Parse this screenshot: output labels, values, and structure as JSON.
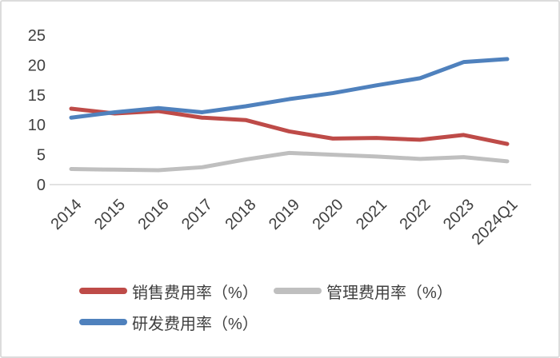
{
  "chart_data": {
    "type": "line",
    "title": "",
    "categories": [
      "2014",
      "2015",
      "2016",
      "2017",
      "2018",
      "2019",
      "2020",
      "2021",
      "2022",
      "2023",
      "2024Q1"
    ],
    "series": [
      {
        "key": "sales-expense-ratio",
        "name": "销售费用率（%）",
        "color": "#BE4B48",
        "values": [
          12.7,
          11.9,
          12.3,
          11.2,
          10.8,
          8.9,
          7.7,
          7.8,
          7.5,
          8.3,
          6.8
        ]
      },
      {
        "key": "management-expense-ratio",
        "name": "管理费用率（%）",
        "color": "#BFBFBF",
        "values": [
          2.6,
          2.5,
          2.4,
          2.9,
          4.2,
          5.3,
          5.0,
          4.7,
          4.3,
          4.6,
          3.9
        ]
      },
      {
        "key": "rd-expense-ratio",
        "name": "研发费用率（%）",
        "color": "#4F81BD",
        "values": [
          11.2,
          12.1,
          12.8,
          12.1,
          13.1,
          14.3,
          15.3,
          16.6,
          17.8,
          20.5,
          21.0
        ]
      }
    ],
    "xlabel": "",
    "ylabel": "",
    "ylim": [
      0,
      25
    ],
    "yticks": [
      0,
      5,
      10,
      15,
      20,
      25
    ],
    "grid": false,
    "legend_position": "bottom",
    "axis_color": "#d9d9d9",
    "label_color": "#404040",
    "line_width": 5
  }
}
